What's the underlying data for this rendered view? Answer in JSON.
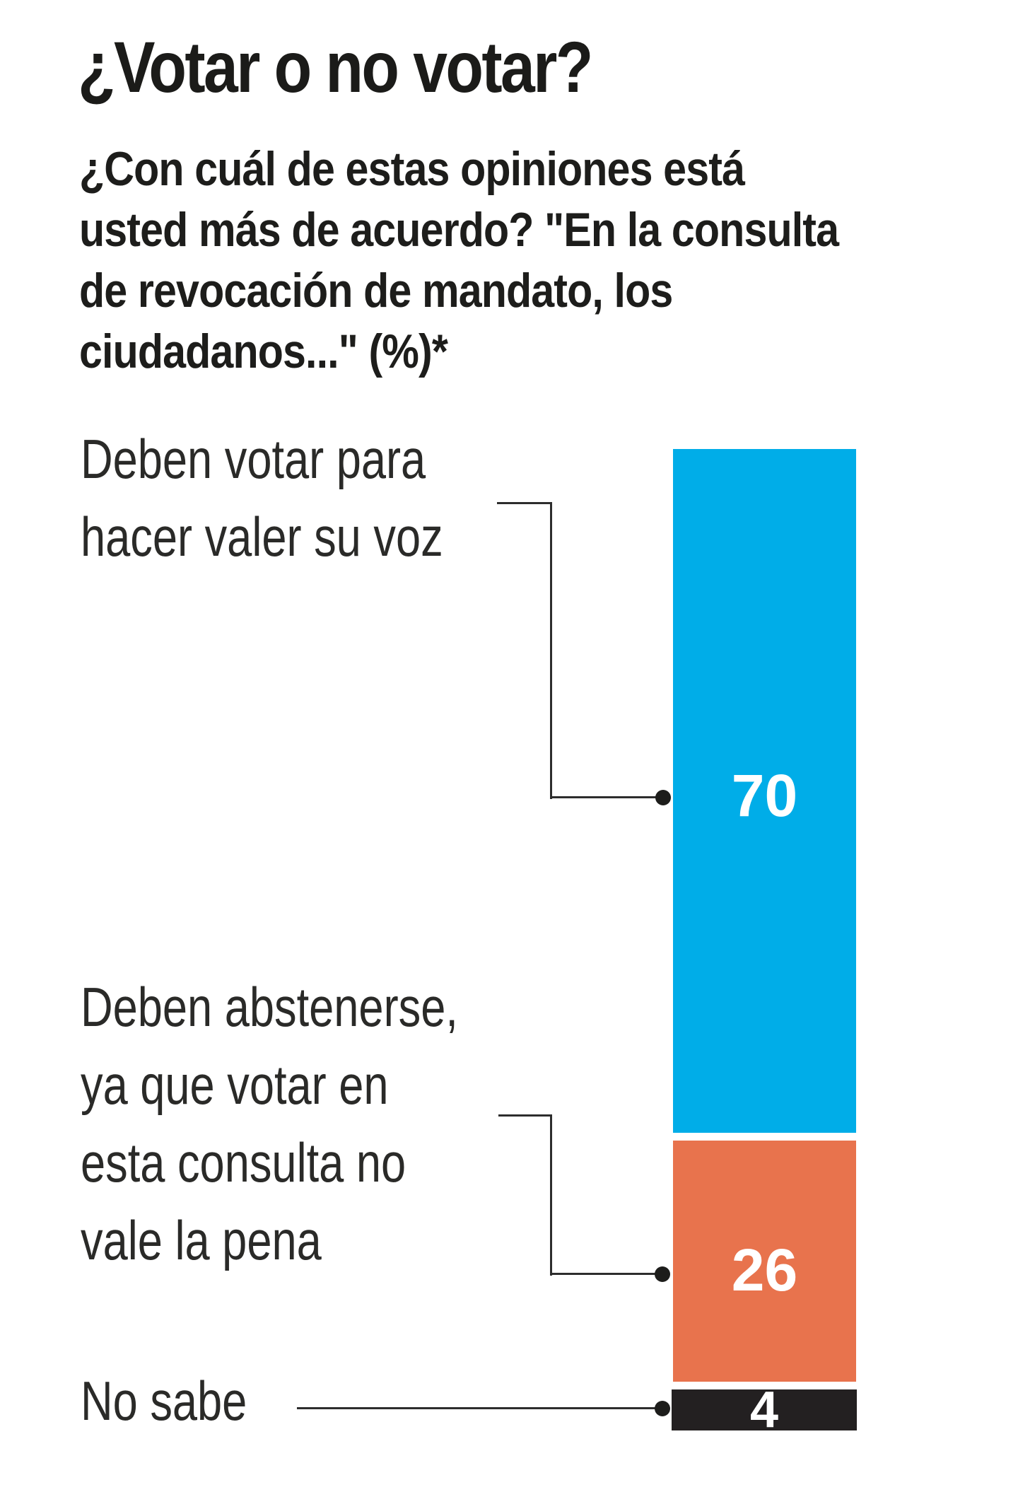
{
  "title": "¿Votar o no votar?",
  "subtitle": {
    "lines": [
      "¿Con cuál de estas opiniones está",
      "usted más de acuerdo? \"En la consulta",
      "de revocación de mandato, los",
      "ciudadanos...\"  (%)*"
    ]
  },
  "labels": {
    "segment1": {
      "lines": [
        "Deben votar para",
        "hacer valer su voz"
      ]
    },
    "segment2": {
      "lines": [
        "Deben abstenerse,",
        "ya que votar en",
        "esta consulta no",
        "vale la pena"
      ]
    },
    "segment3": {
      "lines": [
        "No sabe"
      ]
    }
  },
  "chart_data": {
    "type": "bar",
    "subtype": "single-column-stacked",
    "unit": "%",
    "grid": false,
    "legend_position": "left-annotations-with-elbow-connectors",
    "categories": [
      "Deben votar para hacer valer su voz",
      "Deben abstenerse, ya que votar en esta consulta no vale la pena",
      "No sabe"
    ],
    "values": [
      70,
      26,
      4
    ],
    "colors": [
      "#00ADE8",
      "#E8734D",
      "#232021"
    ],
    "value_label_color": "#FFFFFF",
    "connector_color": "#2D2D2D"
  }
}
